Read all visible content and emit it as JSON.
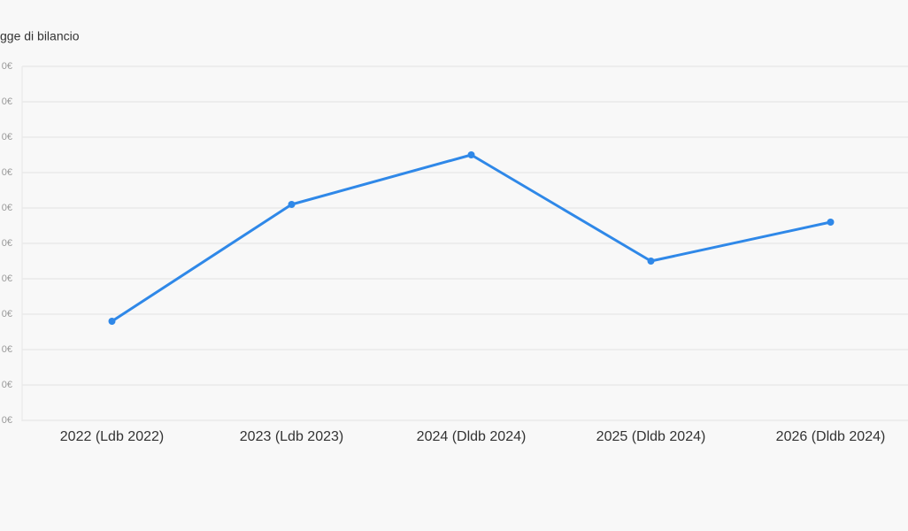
{
  "chart_data": {
    "type": "line",
    "title": "gge di bilancio",
    "categories": [
      "2022 (Ldb 2022)",
      "2023 (Ldb 2023)",
      "2024 (Dldb 2024)",
      "2025 (Dldb 2024)",
      "2026 (Dldb 2024)"
    ],
    "values": [
      2.8,
      6.1,
      7.5,
      4.5,
      5.6
    ],
    "color": "#2f88e8",
    "ylim": [
      0,
      10
    ],
    "yticks": [
      {
        "value": 0,
        "label": "0€"
      },
      {
        "value": 1,
        "label": "0€"
      },
      {
        "value": 2,
        "label": "0€"
      },
      {
        "value": 3,
        "label": "0€"
      },
      {
        "value": 4,
        "label": "0€"
      },
      {
        "value": 5,
        "label": "0€"
      },
      {
        "value": 6,
        "label": "0€"
      },
      {
        "value": 7,
        "label": "0€"
      },
      {
        "value": 8,
        "label": "0€"
      },
      {
        "value": 9,
        "label": "0€"
      },
      {
        "value": 10,
        "label": "0€"
      }
    ],
    "grid": true
  }
}
